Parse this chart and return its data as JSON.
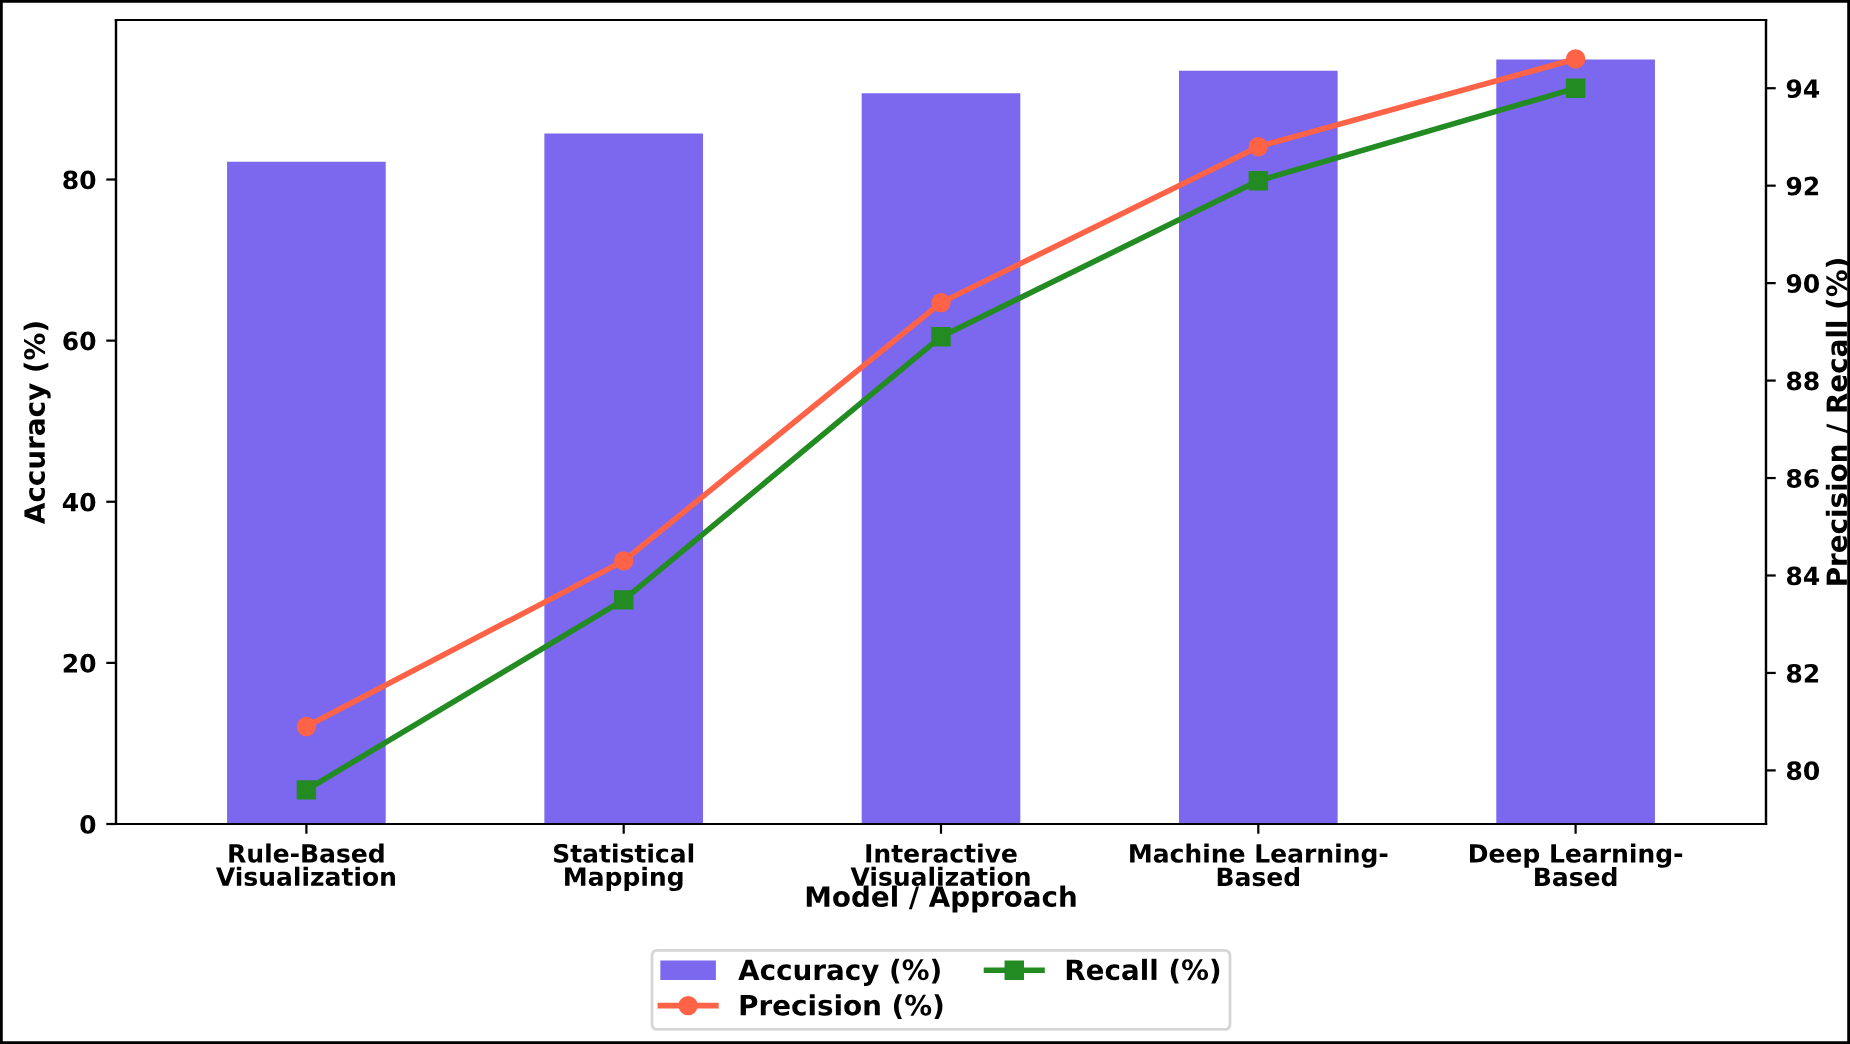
{
  "chart_data": {
    "type": "bar",
    "xlabel": "Model / Approach",
    "ylabel": "Accuracy (%)",
    "y2label": "Precision / Recall (%)",
    "categories": [
      "Rule-Based\nVisualization",
      "Statistical\nMapping",
      "Interactive\nVisualization",
      "Machine Learning-\nBased",
      "Deep Learning-\nBased"
    ],
    "series": [
      {
        "name": "Accuracy (%)",
        "color": "#7b68ee",
        "values": [
          82.2,
          85.7,
          90.7,
          93.5,
          94.9
        ]
      },
      {
        "name": "Precision (%)",
        "type": "line",
        "axis": "y2",
        "marker": "circle",
        "color": "#ff6347",
        "values": [
          80.9,
          84.3,
          89.6,
          92.8,
          94.6
        ]
      },
      {
        "name": "Recall (%)",
        "type": "line",
        "axis": "y2",
        "marker": "square",
        "color": "#228b22",
        "values": [
          79.6,
          83.5,
          88.9,
          92.1,
          94.0
        ]
      }
    ],
    "ylim": [
      0,
      99.8
    ],
    "yticks": [
      0,
      20,
      40,
      60,
      80
    ],
    "y2lim": [
      78.9,
      95.4
    ],
    "y2ticks": [
      80,
      82,
      84,
      86,
      88,
      90,
      92,
      94
    ],
    "legend": "bottom",
    "grid": false
  }
}
